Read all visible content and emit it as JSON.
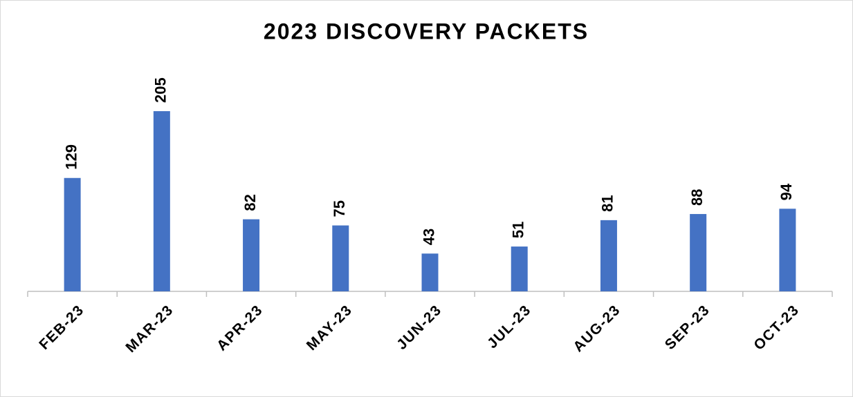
{
  "chart_data": {
    "type": "bar",
    "title": "2023 DISCOVERY PACKETS",
    "categories": [
      "FEB-23",
      "MAR-23",
      "APR-23",
      "MAY-23",
      "JUN-23",
      "JUL-23",
      "AUG-23",
      "SEP-23",
      "OCT-23"
    ],
    "values": [
      129,
      205,
      82,
      75,
      43,
      51,
      81,
      88,
      94
    ],
    "color": "#4472c4"
  }
}
